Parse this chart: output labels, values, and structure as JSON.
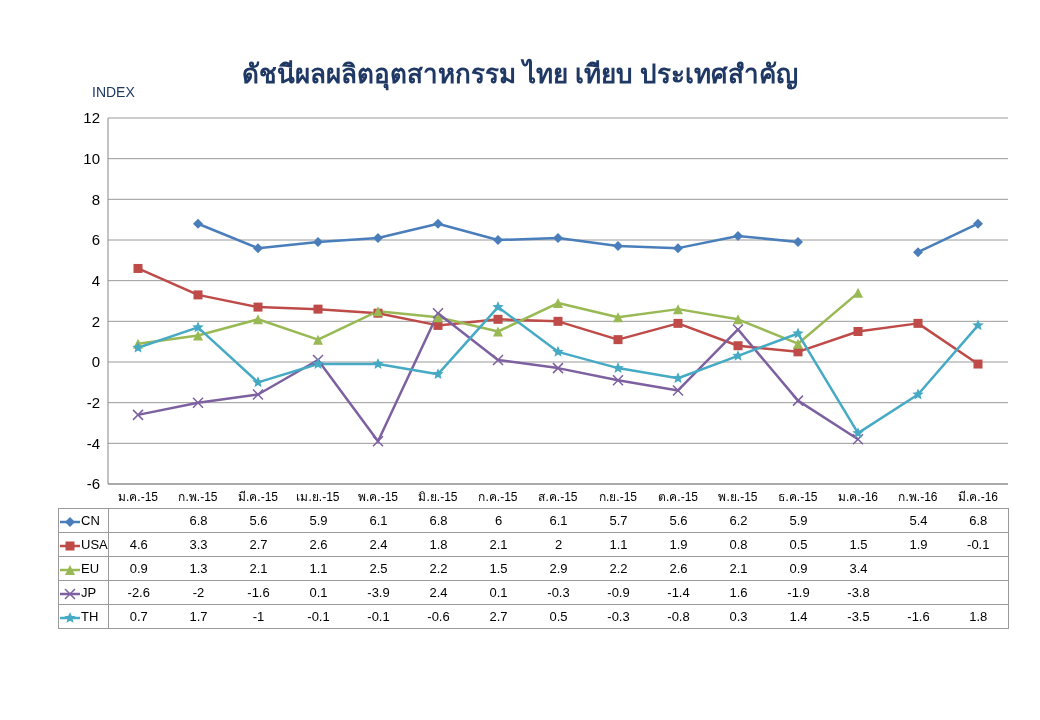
{
  "chart_data": {
    "type": "line",
    "title": "ดัชนีผลผลิตอุตสาหกรรม ไทย เทียบ ประเทศสำคัญ",
    "ylabel": "INDEX",
    "categories": [
      "ม.ค.-15",
      "ก.พ.-15",
      "มี.ค.-15",
      "เม.ย.-15",
      "พ.ค.-15",
      "มิ.ย.-15",
      "ก.ค.-15",
      "ส.ค.-15",
      "ก.ย.-15",
      "ต.ค.-15",
      "พ.ย.-15",
      "ธ.ค.-15",
      "ม.ค.-16",
      "ก.พ.-16",
      "มี.ค.-16"
    ],
    "series": [
      {
        "name": "CN",
        "color": "#4a7ebb",
        "marker": "diamond",
        "values": [
          null,
          6.8,
          5.6,
          5.9,
          6.1,
          6.8,
          6,
          6.1,
          5.7,
          5.6,
          6.2,
          5.9,
          null,
          5.4,
          6.8
        ]
      },
      {
        "name": "USA",
        "color": "#be4b48",
        "marker": "square",
        "values": [
          4.6,
          3.3,
          2.7,
          2.6,
          2.4,
          1.8,
          2.1,
          2,
          1.1,
          1.9,
          0.8,
          0.5,
          1.5,
          1.9,
          -0.1
        ]
      },
      {
        "name": "EU",
        "color": "#98b954",
        "marker": "triangle",
        "values": [
          0.9,
          1.3,
          2.1,
          1.1,
          2.5,
          2.2,
          1.5,
          2.9,
          2.2,
          2.6,
          2.1,
          0.9,
          3.4,
          null,
          null
        ]
      },
      {
        "name": "JP",
        "color": "#7d60a0",
        "marker": "cross",
        "values": [
          -2.6,
          -2,
          -1.6,
          0.1,
          -3.9,
          2.4,
          0.1,
          -0.3,
          -0.9,
          -1.4,
          1.6,
          -1.9,
          -3.8,
          null,
          null
        ]
      },
      {
        "name": "TH",
        "color": "#46aac5",
        "marker": "star",
        "values": [
          0.7,
          1.7,
          -1,
          -0.1,
          -0.1,
          -0.6,
          2.7,
          0.5,
          -0.3,
          -0.8,
          0.3,
          1.4,
          -3.5,
          -1.6,
          1.8
        ]
      }
    ],
    "ylim": [
      -6,
      12
    ],
    "yticks": [
      -6,
      -4,
      -2,
      0,
      2,
      4,
      6,
      8,
      10,
      12
    ],
    "grid": "y",
    "legend": "bottom",
    "data_labels": true,
    "line_style": "solid"
  }
}
